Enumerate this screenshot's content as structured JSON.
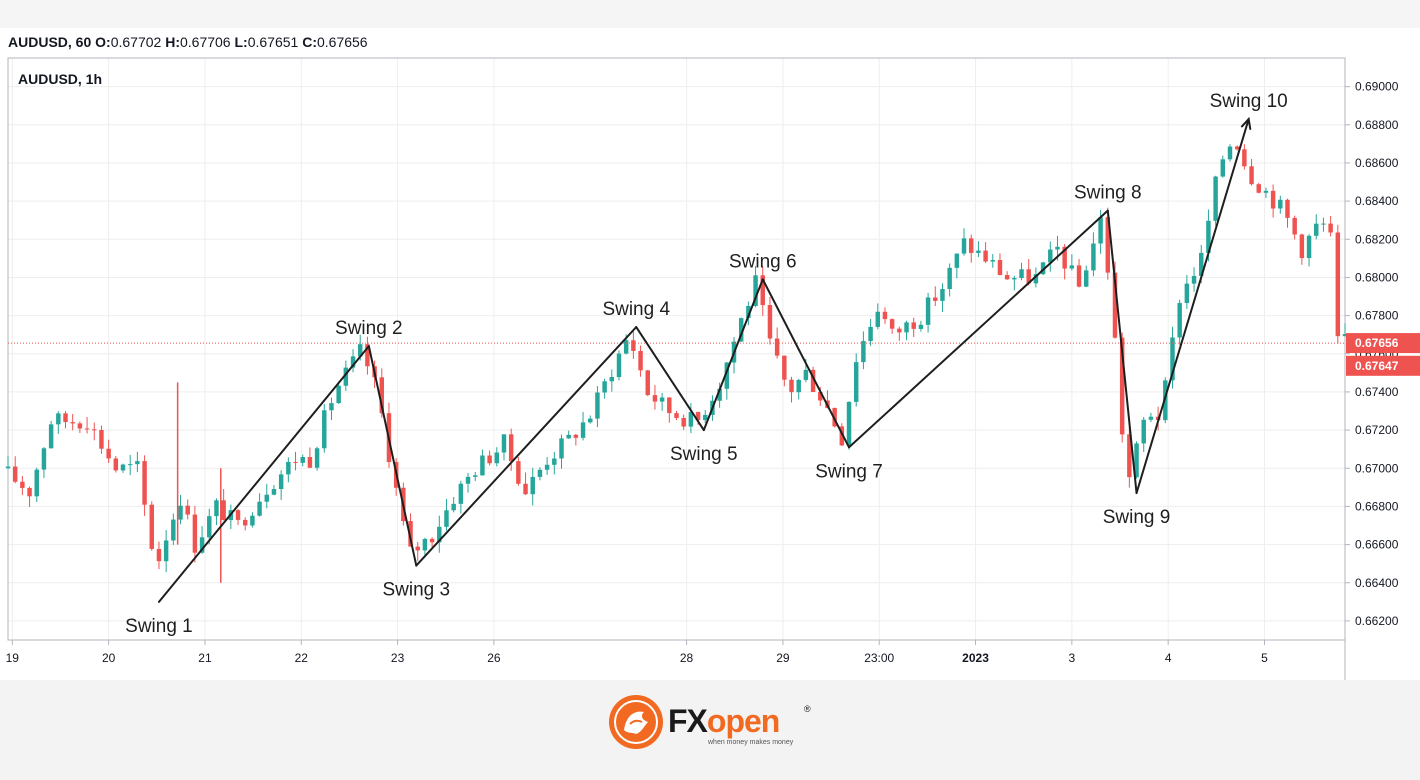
{
  "header": {
    "symbol_interval": "AUDUSD, 60",
    "open_label": "O:",
    "open_value": "0.67702",
    "high_label": "H:",
    "high_value": "0.67706",
    "low_label": "L:",
    "low_value": "0.67651",
    "close_label": "C:",
    "close_value": "0.67656"
  },
  "brand": {
    "name": "FXopen",
    "tagline": "when money makes money",
    "registered": "®",
    "orange": "#f26a21"
  },
  "colors": {
    "up": "#26a69a",
    "down": "#ef5350",
    "line": "#1e1e1e",
    "grid": "#eeeeee",
    "last_price_line": "#ef5350"
  },
  "chart_data": {
    "type": "candlestick",
    "title": "AUDUSD, 1h",
    "ylim": [
      0.661,
      0.6915
    ],
    "grid": true,
    "x_ticks": [
      "19",
      "20",
      "21",
      "22",
      "23",
      "26",
      "28",
      "29",
      "23:00",
      "2023",
      "3",
      "4",
      "5"
    ],
    "x_tick_index": [
      3,
      70,
      137,
      204,
      271,
      338,
      472,
      539,
      606,
      673,
      740,
      807,
      874
    ],
    "x_range_index": [
      0,
      930
    ],
    "y_ticks": [
      "0.69000",
      "0.68800",
      "0.68600",
      "0.68400",
      "0.68200",
      "0.68000",
      "0.67800",
      "0.67600",
      "0.67400",
      "0.67200",
      "0.67000",
      "0.66800",
      "0.66600",
      "0.66400",
      "0.66200"
    ],
    "last_prices": [
      {
        "value": 0.67656,
        "label": "0.67656"
      },
      {
        "value": 0.67647,
        "label": "0.67647"
      }
    ],
    "swings": [
      {
        "label": "Swing 1",
        "x_index": 105,
        "y": 0.663,
        "position": "below"
      },
      {
        "label": "Swing 2",
        "x_index": 251,
        "y": 0.6764,
        "position": "above"
      },
      {
        "label": "Swing 3",
        "x_index": 284,
        "y": 0.6649,
        "position": "below"
      },
      {
        "label": "Swing 4",
        "x_index": 437,
        "y": 0.6774,
        "position": "above"
      },
      {
        "label": "Swing 5",
        "x_index": 484,
        "y": 0.672,
        "position": "below"
      },
      {
        "label": "Swing 6",
        "x_index": 525,
        "y": 0.6799,
        "position": "above"
      },
      {
        "label": "Swing 7",
        "x_index": 585,
        "y": 0.6711,
        "position": "below"
      },
      {
        "label": "Swing 8",
        "x_index": 765,
        "y": 0.6835,
        "position": "above"
      },
      {
        "label": "Swing 9",
        "x_index": 785,
        "y": 0.6687,
        "position": "below"
      },
      {
        "label": "Swing 10",
        "x_index": 863,
        "y": 0.6883,
        "position": "above"
      }
    ],
    "price_path": [
      [
        0,
        0.67
      ],
      [
        20,
        0.6688
      ],
      [
        35,
        0.6725
      ],
      [
        60,
        0.6725
      ],
      [
        80,
        0.67
      ],
      [
        95,
        0.67
      ],
      [
        108,
        0.6648
      ],
      [
        115,
        0.6665
      ],
      [
        125,
        0.6685
      ],
      [
        135,
        0.666
      ],
      [
        150,
        0.668
      ],
      [
        165,
        0.667
      ],
      [
        185,
        0.669
      ],
      [
        205,
        0.6705
      ],
      [
        215,
        0.6705
      ],
      [
        232,
        0.674
      ],
      [
        251,
        0.6762
      ],
      [
        262,
        0.674
      ],
      [
        272,
        0.67
      ],
      [
        284,
        0.6655
      ],
      [
        300,
        0.6665
      ],
      [
        315,
        0.6685
      ],
      [
        330,
        0.67
      ],
      [
        350,
        0.6713
      ],
      [
        365,
        0.6688
      ],
      [
        380,
        0.6705
      ],
      [
        395,
        0.6715
      ],
      [
        410,
        0.6728
      ],
      [
        425,
        0.6752
      ],
      [
        437,
        0.677
      ],
      [
        450,
        0.674
      ],
      [
        465,
        0.673
      ],
      [
        484,
        0.6724
      ],
      [
        500,
        0.6745
      ],
      [
        515,
        0.6778
      ],
      [
        525,
        0.6797
      ],
      [
        535,
        0.6765
      ],
      [
        548,
        0.674
      ],
      [
        560,
        0.675
      ],
      [
        573,
        0.6735
      ],
      [
        585,
        0.6716
      ],
      [
        595,
        0.6758
      ],
      [
        610,
        0.6785
      ],
      [
        620,
        0.677
      ],
      [
        640,
        0.678
      ],
      [
        655,
        0.6795
      ],
      [
        670,
        0.6818
      ],
      [
        685,
        0.681
      ],
      [
        700,
        0.68
      ],
      [
        720,
        0.68
      ],
      [
        735,
        0.6815
      ],
      [
        750,
        0.6795
      ],
      [
        765,
        0.683
      ],
      [
        772,
        0.6795
      ],
      [
        780,
        0.672
      ],
      [
        785,
        0.6695
      ],
      [
        797,
        0.673
      ],
      [
        807,
        0.6727
      ],
      [
        820,
        0.679
      ],
      [
        835,
        0.681
      ],
      [
        848,
        0.686
      ],
      [
        858,
        0.6875
      ],
      [
        868,
        0.6855
      ],
      [
        880,
        0.6845
      ],
      [
        892,
        0.6835
      ],
      [
        905,
        0.6815
      ],
      [
        918,
        0.683
      ],
      [
        925,
        0.682
      ],
      [
        928,
        0.6775
      ],
      [
        930,
        0.6766
      ]
    ]
  }
}
